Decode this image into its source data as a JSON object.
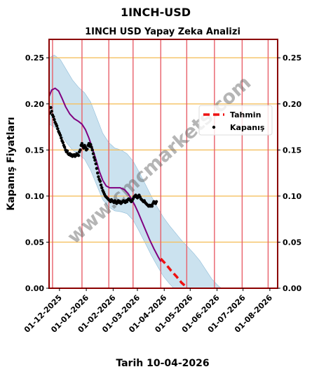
{
  "title": "1INCH-USD",
  "chart_data": {
    "type": "line",
    "title": "1INCH USD Yapay Zeka Analizi",
    "xlabel": "Tarih 10-04-2026",
    "ylabel": "Kapanış Fiyatları",
    "watermark": "www.cmcmarkets.com",
    "xlim": [
      "2025-11-19",
      "2026-08-10"
    ],
    "ylim": [
      0,
      0.27
    ],
    "yticks": [
      0.0,
      0.05,
      0.1,
      0.15,
      0.2,
      0.25
    ],
    "ytick_labels": [
      "0.00",
      "0.05",
      "0.10",
      "0.15",
      "0.20",
      "0.25"
    ],
    "xticks": [
      "2025-12-01",
      "2026-01-01",
      "2026-02-01",
      "2026-03-01",
      "2026-04-01",
      "2026-05-01",
      "2026-06-01",
      "2026-07-01",
      "2026-08-01"
    ],
    "xtick_labels": [
      "01-12-2025",
      "01-01-2026",
      "01-02-2026",
      "01-03-2026",
      "01-04-2026",
      "01-05-2026",
      "01-06-2026",
      "01-07-2026",
      "01-08-2026"
    ],
    "vlines": [
      "2025-11-23",
      "2025-12-27",
      "2026-01-27",
      "2026-02-24",
      "2026-03-28",
      "2026-04-27",
      "2026-05-29",
      "2026-06-30",
      "2026-07-30"
    ],
    "grid": "horizontal",
    "legend_position": "right",
    "colors": {
      "closing": "#000000",
      "trend": "#800080",
      "forecast": "#ee1111",
      "band": "#a9cfe5",
      "vline": "#e8606a",
      "hgrid": "#f5c060",
      "frame": "#8b0000"
    },
    "series": [
      {
        "name": "Kapanış",
        "kind": "scatter",
        "points": [
          [
            "2025-11-20",
            0.19
          ],
          [
            "2025-11-21",
            0.196
          ],
          [
            "2025-11-22",
            0.192
          ],
          [
            "2025-11-23",
            0.188
          ],
          [
            "2025-11-24",
            0.186
          ],
          [
            "2025-11-25",
            0.183
          ],
          [
            "2025-11-26",
            0.18
          ],
          [
            "2025-11-27",
            0.178
          ],
          [
            "2025-11-28",
            0.176
          ],
          [
            "2025-11-29",
            0.173
          ],
          [
            "2025-11-30",
            0.17
          ],
          [
            "2025-12-01",
            0.168
          ],
          [
            "2025-12-02",
            0.166
          ],
          [
            "2025-12-03",
            0.163
          ],
          [
            "2025-12-04",
            0.16
          ],
          [
            "2025-12-05",
            0.158
          ],
          [
            "2025-12-06",
            0.155
          ],
          [
            "2025-12-07",
            0.153
          ],
          [
            "2025-12-08",
            0.15
          ],
          [
            "2025-12-09",
            0.148
          ],
          [
            "2025-12-10",
            0.149
          ],
          [
            "2025-12-11",
            0.146
          ],
          [
            "2025-12-12",
            0.145
          ],
          [
            "2025-12-13",
            0.146
          ],
          [
            "2025-12-14",
            0.144
          ],
          [
            "2025-12-15",
            0.145
          ],
          [
            "2025-12-16",
            0.143
          ],
          [
            "2025-12-17",
            0.144
          ],
          [
            "2025-12-18",
            0.145
          ],
          [
            "2025-12-19",
            0.143
          ],
          [
            "2025-12-20",
            0.144
          ],
          [
            "2025-12-21",
            0.146
          ],
          [
            "2025-12-22",
            0.145
          ],
          [
            "2025-12-23",
            0.144
          ],
          [
            "2025-12-24",
            0.148
          ],
          [
            "2025-12-25",
            0.15
          ],
          [
            "2025-12-26",
            0.155
          ],
          [
            "2025-12-27",
            0.157
          ],
          [
            "2025-12-28",
            0.154
          ],
          [
            "2025-12-29",
            0.152
          ],
          [
            "2025-12-30",
            0.155
          ],
          [
            "2025-12-31",
            0.153
          ],
          [
            "2026-01-01",
            0.15
          ],
          [
            "2026-01-02",
            0.151
          ],
          [
            "2026-01-03",
            0.155
          ],
          [
            "2026-01-04",
            0.157
          ],
          [
            "2026-01-05",
            0.154
          ],
          [
            "2026-01-06",
            0.156
          ],
          [
            "2026-01-07",
            0.153
          ],
          [
            "2026-01-08",
            0.15
          ],
          [
            "2026-01-09",
            0.146
          ],
          [
            "2026-01-10",
            0.142
          ],
          [
            "2026-01-11",
            0.139
          ],
          [
            "2026-01-12",
            0.135
          ],
          [
            "2026-01-13",
            0.13
          ],
          [
            "2026-01-14",
            0.125
          ],
          [
            "2026-01-15",
            0.121
          ],
          [
            "2026-01-16",
            0.118
          ],
          [
            "2026-01-17",
            0.116
          ],
          [
            "2026-01-18",
            0.112
          ],
          [
            "2026-01-19",
            0.109
          ],
          [
            "2026-01-20",
            0.106
          ],
          [
            "2026-01-21",
            0.104
          ],
          [
            "2026-01-22",
            0.102
          ],
          [
            "2026-01-23",
            0.1
          ],
          [
            "2026-01-24",
            0.099
          ],
          [
            "2026-01-25",
            0.098
          ],
          [
            "2026-01-26",
            0.097
          ],
          [
            "2026-01-27",
            0.096
          ],
          [
            "2026-01-28",
            0.095
          ],
          [
            "2026-01-29",
            0.094
          ],
          [
            "2026-01-30",
            0.096
          ],
          [
            "2026-01-31",
            0.095
          ],
          [
            "2026-02-01",
            0.094
          ],
          [
            "2026-02-02",
            0.093
          ],
          [
            "2026-02-03",
            0.095
          ],
          [
            "2026-02-04",
            0.094
          ],
          [
            "2026-02-05",
            0.092
          ],
          [
            "2026-02-06",
            0.094
          ],
          [
            "2026-02-07",
            0.095
          ],
          [
            "2026-02-08",
            0.093
          ],
          [
            "2026-02-09",
            0.094
          ],
          [
            "2026-02-10",
            0.092
          ],
          [
            "2026-02-11",
            0.093
          ],
          [
            "2026-02-12",
            0.094
          ],
          [
            "2026-02-13",
            0.095
          ],
          [
            "2026-02-14",
            0.094
          ],
          [
            "2026-02-15",
            0.093
          ],
          [
            "2026-02-16",
            0.095
          ],
          [
            "2026-02-17",
            0.094
          ],
          [
            "2026-02-18",
            0.096
          ],
          [
            "2026-02-19",
            0.097
          ],
          [
            "2026-02-20",
            0.096
          ],
          [
            "2026-02-21",
            0.095
          ],
          [
            "2026-02-22",
            0.094
          ],
          [
            "2026-02-23",
            0.095
          ],
          [
            "2026-02-24",
            0.097
          ],
          [
            "2026-02-25",
            0.099
          ],
          [
            "2026-02-26",
            0.1
          ],
          [
            "2026-02-27",
            0.101
          ],
          [
            "2026-02-28",
            0.099
          ],
          [
            "2026-03-01",
            0.098
          ],
          [
            "2026-03-02",
            0.1
          ],
          [
            "2026-03-03",
            0.101
          ],
          [
            "2026-03-04",
            0.099
          ],
          [
            "2026-03-05",
            0.097
          ],
          [
            "2026-03-06",
            0.096
          ],
          [
            "2026-03-07",
            0.095
          ],
          [
            "2026-03-08",
            0.094
          ],
          [
            "2026-03-09",
            0.095
          ],
          [
            "2026-03-10",
            0.093
          ],
          [
            "2026-03-11",
            0.092
          ],
          [
            "2026-03-12",
            0.091
          ],
          [
            "2026-03-13",
            0.09
          ],
          [
            "2026-03-14",
            0.089
          ],
          [
            "2026-03-15",
            0.09
          ],
          [
            "2026-03-16",
            0.089
          ],
          [
            "2026-03-17",
            0.09
          ],
          [
            "2026-03-18",
            0.089
          ],
          [
            "2026-03-19",
            0.092
          ],
          [
            "2026-03-20",
            0.094
          ],
          [
            "2026-03-21",
            0.093
          ],
          [
            "2026-03-22",
            0.092
          ],
          [
            "2026-03-23",
            0.094
          ]
        ]
      },
      {
        "name": "",
        "kind": "line",
        "points": [
          [
            "2025-11-19",
            0.208
          ],
          [
            "2025-11-22",
            0.215
          ],
          [
            "2025-11-26",
            0.217
          ],
          [
            "2025-11-30",
            0.214
          ],
          [
            "2025-12-04",
            0.206
          ],
          [
            "2025-12-08",
            0.197
          ],
          [
            "2025-12-13",
            0.189
          ],
          [
            "2025-12-18",
            0.184
          ],
          [
            "2025-12-23",
            0.181
          ],
          [
            "2025-12-27",
            0.178
          ],
          [
            "2025-12-31",
            0.172
          ],
          [
            "2026-01-04",
            0.163
          ],
          [
            "2026-01-08",
            0.152
          ],
          [
            "2026-01-12",
            0.14
          ],
          [
            "2026-01-16",
            0.127
          ],
          [
            "2026-01-20",
            0.117
          ],
          [
            "2026-01-24",
            0.111
          ],
          [
            "2026-01-28",
            0.109
          ],
          [
            "2026-02-03",
            0.109
          ],
          [
            "2026-02-09",
            0.109
          ],
          [
            "2026-02-14",
            0.107
          ],
          [
            "2026-02-18",
            0.103
          ],
          [
            "2026-02-22",
            0.097
          ],
          [
            "2026-02-26",
            0.09
          ],
          [
            "2026-03-02",
            0.082
          ],
          [
            "2026-03-06",
            0.073
          ],
          [
            "2026-03-10",
            0.064
          ],
          [
            "2026-03-15",
            0.053
          ],
          [
            "2026-03-20",
            0.043
          ],
          [
            "2026-03-25",
            0.034
          ],
          [
            "2026-03-28",
            0.029
          ]
        ]
      },
      {
        "name": "Tahmin",
        "kind": "dashed",
        "points": [
          [
            "2026-03-28",
            0.032
          ],
          [
            "2026-04-03",
            0.026
          ],
          [
            "2026-04-09",
            0.019
          ],
          [
            "2026-04-15",
            0.013
          ],
          [
            "2026-04-21",
            0.006
          ],
          [
            "2026-04-27",
            0.001
          ]
        ]
      },
      {
        "name": "",
        "kind": "band",
        "upper": [
          [
            "2025-11-19",
            0.25
          ],
          [
            "2025-11-25",
            0.253
          ],
          [
            "2025-12-02",
            0.248
          ],
          [
            "2025-12-09",
            0.237
          ],
          [
            "2025-12-16",
            0.226
          ],
          [
            "2025-12-23",
            0.218
          ],
          [
            "2025-12-30",
            0.212
          ],
          [
            "2026-01-06",
            0.202
          ],
          [
            "2026-01-13",
            0.185
          ],
          [
            "2026-01-20",
            0.168
          ],
          [
            "2026-01-27",
            0.158
          ],
          [
            "2026-02-03",
            0.152
          ],
          [
            "2026-02-10",
            0.15
          ],
          [
            "2026-02-17",
            0.146
          ],
          [
            "2026-02-24",
            0.138
          ],
          [
            "2026-03-03",
            0.126
          ],
          [
            "2026-03-10",
            0.113
          ],
          [
            "2026-03-17",
            0.1
          ],
          [
            "2026-03-24",
            0.088
          ],
          [
            "2026-03-31",
            0.077
          ],
          [
            "2026-04-07",
            0.068
          ],
          [
            "2026-04-14",
            0.06
          ],
          [
            "2026-04-21",
            0.052
          ],
          [
            "2026-04-28",
            0.045
          ],
          [
            "2026-05-05",
            0.038
          ],
          [
            "2026-05-12",
            0.03
          ],
          [
            "2026-05-19",
            0.02
          ],
          [
            "2026-05-26",
            0.01
          ],
          [
            "2026-06-02",
            0.003
          ],
          [
            "2026-06-06",
            0.0
          ]
        ],
        "lower": [
          [
            "2025-11-19",
            0.178
          ],
          [
            "2025-11-25",
            0.175
          ],
          [
            "2025-12-02",
            0.168
          ],
          [
            "2025-12-09",
            0.158
          ],
          [
            "2025-12-16",
            0.15
          ],
          [
            "2025-12-23",
            0.145
          ],
          [
            "2025-12-30",
            0.14
          ],
          [
            "2026-01-06",
            0.128
          ],
          [
            "2026-01-13",
            0.112
          ],
          [
            "2026-01-20",
            0.096
          ],
          [
            "2026-01-27",
            0.088
          ],
          [
            "2026-02-03",
            0.084
          ],
          [
            "2026-02-10",
            0.083
          ],
          [
            "2026-02-17",
            0.081
          ],
          [
            "2026-02-24",
            0.074
          ],
          [
            "2026-03-03",
            0.062
          ],
          [
            "2026-03-10",
            0.049
          ],
          [
            "2026-03-17",
            0.036
          ],
          [
            "2026-03-24",
            0.024
          ],
          [
            "2026-03-31",
            0.013
          ],
          [
            "2026-04-07",
            0.005
          ],
          [
            "2026-04-12",
            0.0
          ],
          [
            "2026-06-06",
            0.0
          ]
        ]
      }
    ],
    "legend": [
      {
        "label": "Tahmin",
        "kind": "dashed"
      },
      {
        "label": "Kapanış",
        "kind": "dot"
      }
    ]
  }
}
